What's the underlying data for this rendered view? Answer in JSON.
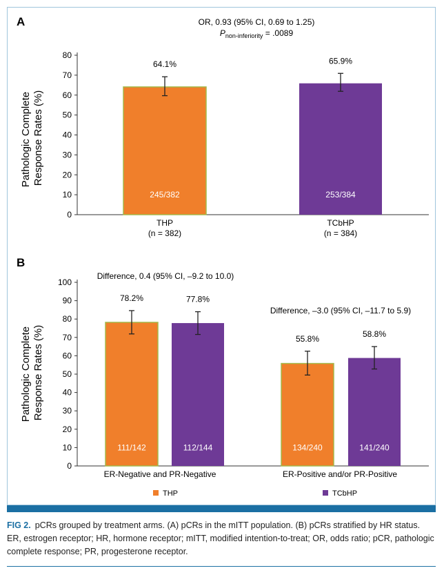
{
  "figure": {
    "label": "FIG 2.",
    "caption": "pCRs grouped by treatment arms. (A) pCRs in the mITT population. (B) pCRs stratified by HR status. ER, estrogen receptor; HR, hormone receptor; mITT, modified intention-to-treat; OR, odds ratio; pCR, pathologic complete response; PR, progesterone receptor."
  },
  "colors": {
    "thp": "#f07f2b",
    "tcbhp": "#6e3a96",
    "accent": "#1b6fa3"
  },
  "chart_data": [
    {
      "panel": "A",
      "type": "bar",
      "ylabel": "Pathologic Complete Response Rates (%)",
      "ylabel_line1": "Pathologic Complete",
      "ylabel_line2": "Response Rates (%)",
      "ylim": [
        0,
        80
      ],
      "yticks": [
        0,
        10,
        20,
        30,
        40,
        50,
        60,
        70,
        80
      ],
      "annotation_line1": "OR, 0.93 (95% CI, 0.69 to 1.25)",
      "annotation_p_symbol": "P",
      "annotation_p_sub": "non-inferiority",
      "annotation_p_value": " = .0089",
      "bars": [
        {
          "name": "THP",
          "n_label": "(n = 382)",
          "value": 64.1,
          "value_label": "64.1%",
          "ci": [
            59.7,
            69.2
          ],
          "count_label": "245/382",
          "color_key": "thp"
        },
        {
          "name": "TCbHP",
          "n_label": "(n = 384)",
          "value": 65.9,
          "value_label": "65.9%",
          "ci": [
            61.9,
            70.9
          ],
          "count_label": "253/384",
          "color_key": "tcbhp"
        }
      ]
    },
    {
      "panel": "B",
      "type": "bar",
      "ylabel": "Pathologic Complete Response Rates (%)",
      "ylabel_line1": "Pathologic Complete",
      "ylabel_line2": "Response Rates (%)",
      "ylim": [
        0,
        100
      ],
      "yticks": [
        0,
        10,
        20,
        30,
        40,
        50,
        60,
        70,
        80,
        90,
        100
      ],
      "groups": [
        {
          "category": "ER-Negative and PR-Negative",
          "difference": "Difference, 0.4 (95% CI, –9.2 to 10.0)",
          "bars": [
            {
              "series": "THP",
              "value": 78.2,
              "value_label": "78.2%",
              "ci": [
                71.9,
                84.6
              ],
              "count_label": "111/142",
              "color_key": "thp"
            },
            {
              "series": "TCbHP",
              "value": 77.8,
              "value_label": "77.8%",
              "ci": [
                71.6,
                84.0
              ],
              "count_label": "112/144",
              "color_key": "tcbhp"
            }
          ]
        },
        {
          "category": "ER-Positive and/or PR-Positive",
          "difference": "Difference, –3.0 (95% CI, –11.7 to 5.9)",
          "bars": [
            {
              "series": "THP",
              "value": 55.8,
              "value_label": "55.8%",
              "ci": [
                49.5,
                62.5
              ],
              "count_label": "134/240",
              "color_key": "thp"
            },
            {
              "series": "TCbHP",
              "value": 58.8,
              "value_label": "58.8%",
              "ci": [
                52.8,
                65.0
              ],
              "count_label": "141/240",
              "color_key": "tcbhp"
            }
          ]
        }
      ],
      "legend": [
        {
          "label": "THP",
          "color_key": "thp"
        },
        {
          "label": "TCbHP",
          "color_key": "tcbhp"
        }
      ]
    }
  ]
}
